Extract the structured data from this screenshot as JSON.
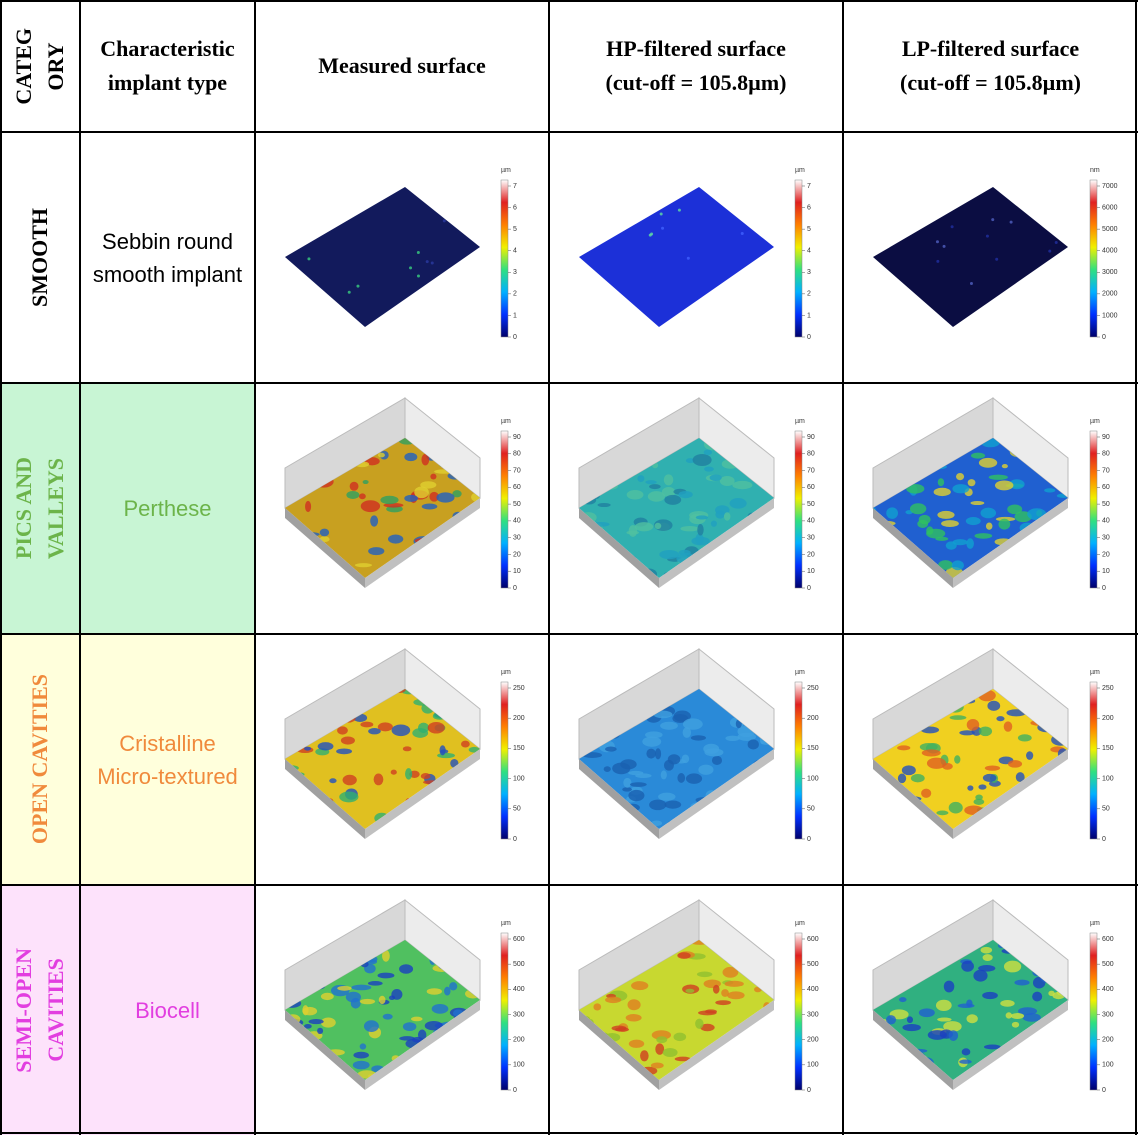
{
  "header": {
    "cells": [
      [
        "CATEG",
        "ORY"
      ],
      [
        "Characteristic",
        "implant type"
      ],
      [
        "Measured surface"
      ],
      [
        "HP-filtered surface",
        "(cut-off = 105.8µm)"
      ],
      [
        "LP-filtered surface",
        "(cut-off = 105.8µm)"
      ]
    ]
  },
  "rows": [
    {
      "category": [
        "SMOOTH"
      ],
      "implant": [
        "Sebbin round",
        "smooth implant"
      ],
      "plots": [
        {
          "unit": "µm",
          "ticks": [
            0,
            1,
            2,
            3,
            4,
            5,
            6,
            7
          ]
        },
        {
          "unit": "µm",
          "ticks": [
            0,
            1,
            2,
            3,
            4,
            5,
            6,
            7
          ]
        },
        {
          "unit": "nm",
          "ticks": [
            0,
            1000,
            2000,
            3000,
            4000,
            5000,
            6000,
            7000
          ]
        }
      ]
    },
    {
      "category": [
        "PICS AND",
        "VALLEYS"
      ],
      "implant": [
        "Perthese"
      ],
      "plots": [
        {
          "unit": "µm",
          "ticks": [
            0,
            10,
            20,
            30,
            40,
            50,
            60,
            70,
            80,
            90
          ]
        },
        {
          "unit": "µm",
          "ticks": [
            0,
            10,
            20,
            30,
            40,
            50,
            60,
            70,
            80,
            90
          ]
        },
        {
          "unit": "µm",
          "ticks": [
            0,
            10,
            20,
            30,
            40,
            50,
            60,
            70,
            80,
            90
          ]
        }
      ]
    },
    {
      "category": [
        "OPEN CAVITIES"
      ],
      "implant": [
        "Cristalline",
        "Micro-textured"
      ],
      "plots": [
        {
          "unit": "µm",
          "ticks": [
            0,
            50,
            100,
            150,
            200,
            250
          ]
        },
        {
          "unit": "µm",
          "ticks": [
            0,
            50,
            100,
            150,
            200,
            250
          ]
        },
        {
          "unit": "µm",
          "ticks": [
            0,
            50,
            100,
            150,
            200,
            250
          ]
        }
      ]
    },
    {
      "category": [
        "SEMI-OPEN",
        "CAVITIES"
      ],
      "implant": [
        "Biocell"
      ],
      "plots": [
        {
          "unit": "µm",
          "ticks": [
            0,
            100,
            200,
            300,
            400,
            500,
            600
          ]
        },
        {
          "unit": "µm",
          "ticks": [
            0,
            100,
            200,
            300,
            400,
            500,
            600
          ]
        },
        {
          "unit": "µm",
          "ticks": [
            0,
            100,
            200,
            300,
            400,
            500,
            600
          ]
        }
      ]
    }
  ]
}
